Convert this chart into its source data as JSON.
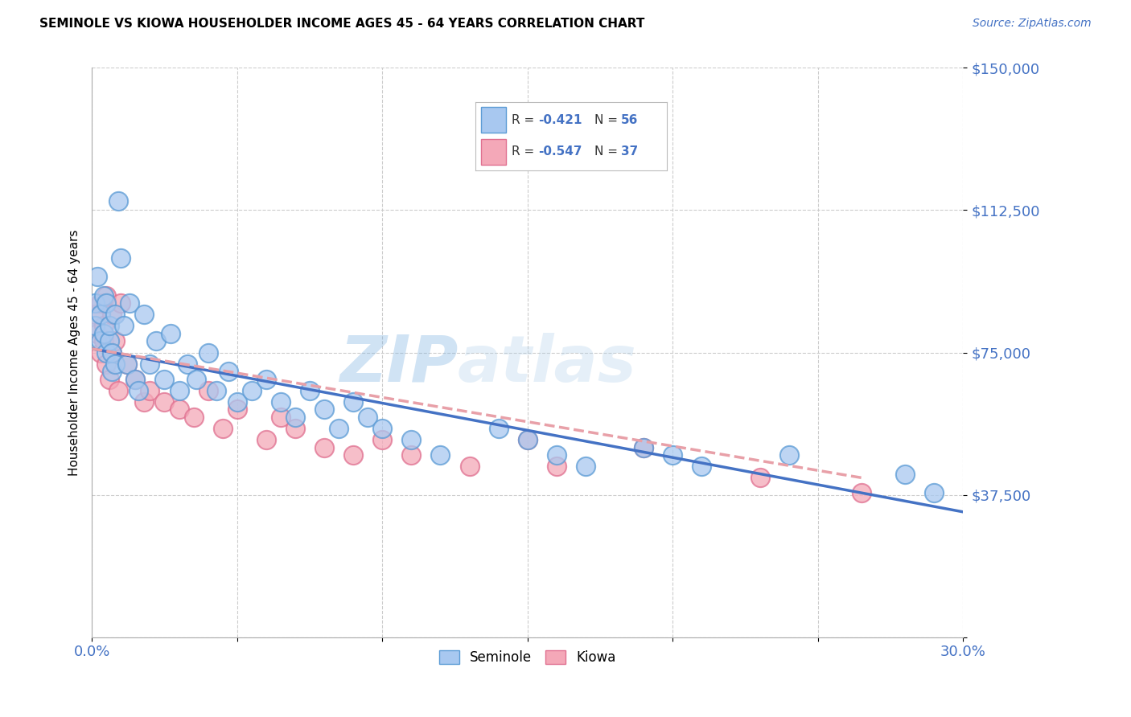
{
  "title": "SEMINOLE VS KIOWA HOUSEHOLDER INCOME AGES 45 - 64 YEARS CORRELATION CHART",
  "source": "Source: ZipAtlas.com",
  "ylabel": "Householder Income Ages 45 - 64 years",
  "x_min": 0.0,
  "x_max": 0.3,
  "y_min": 0,
  "y_max": 150000,
  "x_ticks": [
    0.0,
    0.05,
    0.1,
    0.15,
    0.2,
    0.25,
    0.3
  ],
  "x_tick_labels": [
    "0.0%",
    "",
    "",
    "",
    "",
    "",
    "30.0%"
  ],
  "y_ticks": [
    0,
    37500,
    75000,
    112500,
    150000
  ],
  "y_tick_labels": [
    "",
    "$37,500",
    "$75,000",
    "$112,500",
    "$150,000"
  ],
  "seminole_color": "#A8C8F0",
  "kiowa_color": "#F4A8B8",
  "seminole_edge_color": "#5B9BD5",
  "kiowa_edge_color": "#E07090",
  "seminole_line_color": "#4472C4",
  "kiowa_line_color": "#E8A0A8",
  "seminole_R": -0.421,
  "seminole_N": 56,
  "kiowa_R": -0.547,
  "kiowa_N": 37,
  "watermark": "ZIPatlas",
  "background_color": "#FFFFFF",
  "grid_color": "#CCCCCC",
  "sem_line_x0": 0.0,
  "sem_line_y0": 76000,
  "sem_line_x1": 0.3,
  "sem_line_y1": 33000,
  "kio_line_x0": 0.0,
  "kio_line_y0": 76000,
  "kio_line_x1": 0.265,
  "kio_line_y1": 42000,
  "seminole_x": [
    0.001,
    0.001,
    0.002,
    0.003,
    0.003,
    0.004,
    0.004,
    0.005,
    0.005,
    0.006,
    0.006,
    0.007,
    0.007,
    0.008,
    0.008,
    0.009,
    0.01,
    0.011,
    0.012,
    0.013,
    0.015,
    0.016,
    0.018,
    0.02,
    0.022,
    0.025,
    0.027,
    0.03,
    0.033,
    0.036,
    0.04,
    0.043,
    0.047,
    0.05,
    0.055,
    0.06,
    0.065,
    0.07,
    0.075,
    0.08,
    0.085,
    0.09,
    0.095,
    0.1,
    0.11,
    0.12,
    0.14,
    0.15,
    0.16,
    0.17,
    0.19,
    0.2,
    0.21,
    0.24,
    0.28,
    0.29
  ],
  "seminole_y": [
    88000,
    82000,
    95000,
    78000,
    85000,
    80000,
    90000,
    75000,
    88000,
    78000,
    82000,
    70000,
    75000,
    85000,
    72000,
    115000,
    100000,
    82000,
    72000,
    88000,
    68000,
    65000,
    85000,
    72000,
    78000,
    68000,
    80000,
    65000,
    72000,
    68000,
    75000,
    65000,
    70000,
    62000,
    65000,
    68000,
    62000,
    58000,
    65000,
    60000,
    55000,
    62000,
    58000,
    55000,
    52000,
    48000,
    55000,
    52000,
    48000,
    45000,
    50000,
    48000,
    45000,
    48000,
    43000,
    38000
  ],
  "kiowa_x": [
    0.001,
    0.002,
    0.003,
    0.003,
    0.004,
    0.004,
    0.005,
    0.005,
    0.006,
    0.007,
    0.007,
    0.008,
    0.009,
    0.01,
    0.012,
    0.015,
    0.018,
    0.02,
    0.025,
    0.03,
    0.035,
    0.04,
    0.045,
    0.05,
    0.06,
    0.065,
    0.07,
    0.08,
    0.09,
    0.1,
    0.11,
    0.13,
    0.15,
    0.16,
    0.19,
    0.23,
    0.265
  ],
  "kiowa_y": [
    85000,
    80000,
    88000,
    75000,
    82000,
    78000,
    90000,
    72000,
    68000,
    85000,
    75000,
    78000,
    65000,
    88000,
    72000,
    68000,
    62000,
    65000,
    62000,
    60000,
    58000,
    65000,
    55000,
    60000,
    52000,
    58000,
    55000,
    50000,
    48000,
    52000,
    48000,
    45000,
    52000,
    45000,
    50000,
    42000,
    38000
  ]
}
